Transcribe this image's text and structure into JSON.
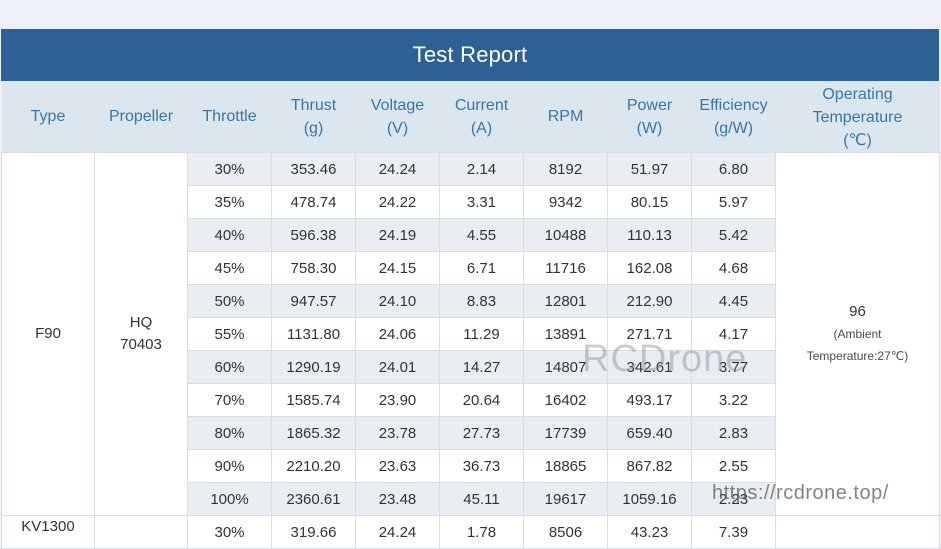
{
  "title": "Test Report",
  "headers": {
    "type": "Type",
    "propeller": "Propeller",
    "throttle": "Throttle",
    "thrust": [
      "Thrust",
      "(g)"
    ],
    "voltage": [
      "Voltage",
      "(V)"
    ],
    "current": [
      "Current",
      "(A)"
    ],
    "rpm": "RPM",
    "power": [
      "Power",
      "(W)"
    ],
    "efficiency": [
      "Efficiency",
      "(g/W)"
    ],
    "temperature": [
      "Operating",
      "Temperature",
      "(℃)"
    ]
  },
  "motor": {
    "line1": "F90",
    "line2": "KV1300"
  },
  "propeller": {
    "line1": "HQ",
    "line2": "70403"
  },
  "temperature": {
    "value": "96",
    "ambient1": "(Ambient",
    "ambient2": "Temperature:27℃)"
  },
  "rows": [
    {
      "throttle": "30%",
      "thrust": "353.46",
      "voltage": "24.24",
      "current": "2.14",
      "rpm": "8192",
      "power": "51.97",
      "efficiency": "6.80"
    },
    {
      "throttle": "35%",
      "thrust": "478.74",
      "voltage": "24.22",
      "current": "3.31",
      "rpm": "9342",
      "power": "80.15",
      "efficiency": "5.97"
    },
    {
      "throttle": "40%",
      "thrust": "596.38",
      "voltage": "24.19",
      "current": "4.55",
      "rpm": "10488",
      "power": "110.13",
      "efficiency": "5.42"
    },
    {
      "throttle": "45%",
      "thrust": "758.30",
      "voltage": "24.15",
      "current": "6.71",
      "rpm": "11716",
      "power": "162.08",
      "efficiency": "4.68"
    },
    {
      "throttle": "50%",
      "thrust": "947.57",
      "voltage": "24.10",
      "current": "8.83",
      "rpm": "12801",
      "power": "212.90",
      "efficiency": "4.45"
    },
    {
      "throttle": "55%",
      "thrust": "1131.80",
      "voltage": "24.06",
      "current": "11.29",
      "rpm": "13891",
      "power": "271.71",
      "efficiency": "4.17"
    },
    {
      "throttle": "60%",
      "thrust": "1290.19",
      "voltage": "24.01",
      "current": "14.27",
      "rpm": "14807",
      "power": "342.61",
      "efficiency": "3.77"
    },
    {
      "throttle": "70%",
      "thrust": "1585.74",
      "voltage": "23.90",
      "current": "20.64",
      "rpm": "16402",
      "power": "493.17",
      "efficiency": "3.22"
    },
    {
      "throttle": "80%",
      "thrust": "1865.32",
      "voltage": "23.78",
      "current": "27.73",
      "rpm": "17739",
      "power": "659.40",
      "efficiency": "2.83"
    },
    {
      "throttle": "90%",
      "thrust": "2210.20",
      "voltage": "23.63",
      "current": "36.73",
      "rpm": "18865",
      "power": "867.82",
      "efficiency": "2.55"
    },
    {
      "throttle": "100%",
      "thrust": "2360.61",
      "voltage": "23.48",
      "current": "45.11",
      "rpm": "19617",
      "power": "1059.16",
      "efficiency": "2.23"
    }
  ],
  "next_row": {
    "throttle": "30%",
    "thrust": "319.66",
    "voltage": "24.24",
    "current": "1.78",
    "rpm": "8506",
    "power": "43.23",
    "efficiency": "7.39"
  },
  "watermark": {
    "text": "RCDrone",
    "url": "https://rcdrone.top/"
  }
}
